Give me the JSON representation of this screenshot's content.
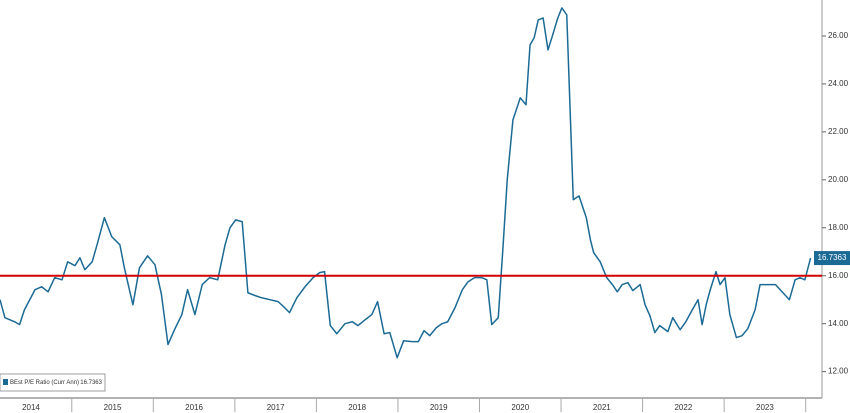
{
  "chart_data": {
    "type": "line",
    "x": [
      2014.12,
      2014.18,
      2014.3,
      2014.36,
      2014.42,
      2014.55,
      2014.63,
      2014.71,
      2014.79,
      2014.88,
      2014.95,
      2015.04,
      2015.1,
      2015.16,
      2015.25,
      2015.31,
      2015.4,
      2015.49,
      2015.59,
      2015.65,
      2015.75,
      2015.83,
      2015.93,
      2016.02,
      2016.1,
      2016.18,
      2016.26,
      2016.35,
      2016.42,
      2016.51,
      2016.6,
      2016.69,
      2016.79,
      2016.88,
      2016.94,
      2017.01,
      2017.09,
      2017.16,
      2017.25,
      2017.33,
      2017.43,
      2017.53,
      2017.61,
      2017.67,
      2017.76,
      2017.86,
      2017.96,
      2018.04,
      2018.1,
      2018.17,
      2018.25,
      2018.35,
      2018.44,
      2018.51,
      2018.6,
      2018.68,
      2018.75,
      2018.83,
      2018.9,
      2018.99,
      2019.07,
      2019.17,
      2019.25,
      2019.32,
      2019.39,
      2019.47,
      2019.54,
      2019.61,
      2019.7,
      2019.79,
      2019.86,
      2019.94,
      2020.03,
      2020.09,
      2020.15,
      2020.23,
      2020.29,
      2020.34,
      2020.41,
      2020.5,
      2020.57,
      2020.62,
      2020.67,
      2020.72,
      2020.78,
      2020.84,
      2020.89,
      2020.96,
      2021.01,
      2021.07,
      2021.15,
      2021.22,
      2021.31,
      2021.36,
      2021.4,
      2021.48,
      2021.56,
      2021.63,
      2021.69,
      2021.75,
      2021.82,
      2021.88,
      2021.97,
      2022.03,
      2022.09,
      2022.15,
      2022.21,
      2022.31,
      2022.37,
      2022.46,
      2022.53,
      2022.61,
      2022.68,
      2022.73,
      2022.78,
      2022.83,
      2022.9,
      2022.95,
      2023.01,
      2023.07,
      2023.15,
      2023.22,
      2023.29,
      2023.38,
      2023.44,
      2023.54,
      2023.63,
      2023.71,
      2023.8,
      2023.87,
      2023.93,
      2023.99,
      2024.06
    ],
    "series": [
      {
        "name": "BEst P/E Ratio (Curr Ann)",
        "color": "#1b6a96",
        "values": [
          15.0,
          14.25,
          14.08,
          13.96,
          14.58,
          15.42,
          15.54,
          15.33,
          15.92,
          15.83,
          16.58,
          16.42,
          16.75,
          16.25,
          16.58,
          17.29,
          18.42,
          17.63,
          17.29,
          16.25,
          14.79,
          16.33,
          16.83,
          16.46,
          15.21,
          13.13,
          13.75,
          14.38,
          15.42,
          14.38,
          15.63,
          15.92,
          15.83,
          17.29,
          18.0,
          18.33,
          18.25,
          15.29,
          15.17,
          15.08,
          15.0,
          14.92,
          14.67,
          14.46,
          15.08,
          15.54,
          15.92,
          16.13,
          16.17,
          13.92,
          13.58,
          14.0,
          14.08,
          13.92,
          14.17,
          14.38,
          14.92,
          13.58,
          13.63,
          12.58,
          13.29,
          13.25,
          13.25,
          13.71,
          13.5,
          13.83,
          14.0,
          14.08,
          14.67,
          15.42,
          15.75,
          15.92,
          15.92,
          15.83,
          13.96,
          14.25,
          17.29,
          20.0,
          22.5,
          23.42,
          23.13,
          25.63,
          25.92,
          26.67,
          26.75,
          25.42,
          25.96,
          26.75,
          27.17,
          26.88,
          19.17,
          19.33,
          18.42,
          17.5,
          16.96,
          16.58,
          15.92,
          15.63,
          15.33,
          15.63,
          15.71,
          15.38,
          15.63,
          14.79,
          14.33,
          13.63,
          13.92,
          13.67,
          14.25,
          13.75,
          14.08,
          14.58,
          15.0,
          13.96,
          14.79,
          15.42,
          16.17,
          15.63,
          15.92,
          14.38,
          13.42,
          13.5,
          13.79,
          14.58,
          15.63,
          15.63,
          15.63,
          15.33,
          15.0,
          15.83,
          15.92,
          15.83,
          16.7363
        ]
      }
    ],
    "xlim": [
      2014.12,
      2024.2
    ],
    "xticks": [
      {
        "value": 2014.5,
        "label": "2014"
      },
      {
        "value": 2015.5,
        "label": "2015"
      },
      {
        "value": 2016.5,
        "label": "2016"
      },
      {
        "value": 2017.5,
        "label": "2017"
      },
      {
        "value": 2018.5,
        "label": "2018"
      },
      {
        "value": 2019.5,
        "label": "2019"
      },
      {
        "value": 2020.5,
        "label": "2020"
      },
      {
        "value": 2021.5,
        "label": "2021"
      },
      {
        "value": 2022.5,
        "label": "2022"
      },
      {
        "value": 2023.5,
        "label": "2023"
      }
    ],
    "ylim": [
      10.9,
      27.5
    ],
    "yticks": [
      {
        "value": 12,
        "label": "12.00"
      },
      {
        "value": 14,
        "label": "14.00"
      },
      {
        "value": 16,
        "label": "16.00"
      },
      {
        "value": 18,
        "label": "18.00"
      },
      {
        "value": 20,
        "label": "20.00"
      },
      {
        "value": 22,
        "label": "22.00"
      },
      {
        "value": 24,
        "label": "24.00"
      },
      {
        "value": 26,
        "label": "26.00"
      }
    ],
    "reference_line": {
      "value": 16,
      "color": "#d40000"
    },
    "legend": "bottom-left"
  }
}
